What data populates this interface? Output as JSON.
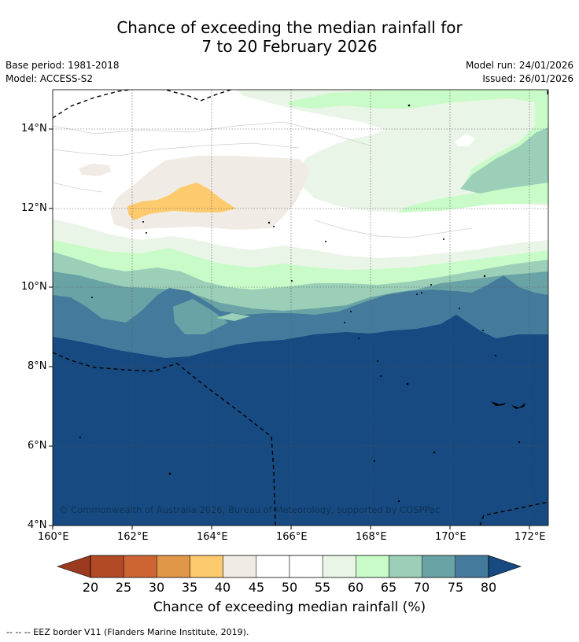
{
  "header": {
    "title_line1": "Chance of exceeding the median rainfall for",
    "title_line2": "7 to 20 February 2026",
    "base_period": "Base period: 1981-2018",
    "model": "Model: ACCESS-S2",
    "model_run": "Model run: 24/01/2026",
    "issued": "Issued: 26/01/2026"
  },
  "map": {
    "lon_ticks": [
      "160°E",
      "162°E",
      "164°E",
      "166°E",
      "168°E",
      "170°E",
      "172°E"
    ],
    "lat_ticks": [
      "14°N",
      "12°N",
      "10°N",
      "8°N",
      "6°N",
      "4°N"
    ],
    "copyright": "© Commonwealth of Australia 2026, Bureau of Meteorology, supported by COSPPac"
  },
  "colorbar": {
    "ticks": [
      "20",
      "25",
      "30",
      "35",
      "40",
      "45",
      "50",
      "55",
      "60",
      "65",
      "70",
      "75",
      "80"
    ],
    "title": "Chance of exceeding median rainfall (%)",
    "under_color": "#9b3a1f",
    "over_color": "#164a80",
    "bins": [
      "#b24a26",
      "#cc6533",
      "#e19748",
      "#fdcb6e",
      "#f0ebe5",
      "#ffffff",
      "#ffffff",
      "#e9f5e6",
      "#c9fbc8",
      "#9bcfb8",
      "#6aa3a6",
      "#447b9c"
    ]
  },
  "footer": {
    "eez_note": "--  --  -- EEZ border V11 (Flanders Marine Institute, 2019)."
  }
}
